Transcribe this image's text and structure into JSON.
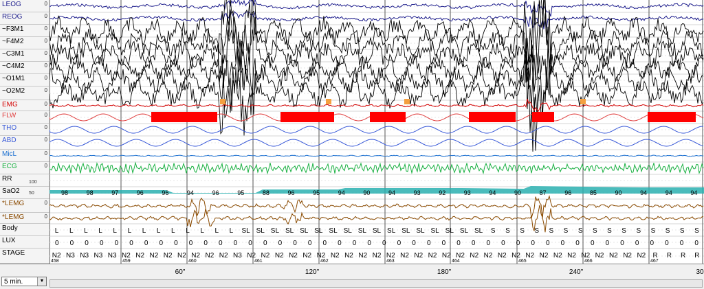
{
  "channels": [
    {
      "name": "LEOG",
      "color": "#1c1c8c",
      "zero": "0"
    },
    {
      "name": "REOG",
      "color": "#1c1c8c",
      "zero": "0"
    },
    {
      "name": "~F3M1",
      "color": "#000000",
      "zero": "0"
    },
    {
      "name": "~F4M2",
      "color": "#000000",
      "zero": "0"
    },
    {
      "name": "~C3M1",
      "color": "#000000",
      "zero": "0"
    },
    {
      "name": "~C4M2",
      "color": "#000000",
      "zero": "0"
    },
    {
      "name": "~O1M1",
      "color": "#000000",
      "zero": "0"
    },
    {
      "name": "~O2M2",
      "color": "#000000",
      "zero": "0"
    },
    {
      "name": "EMG",
      "color": "#d40000",
      "zero": "0"
    },
    {
      "name": "FLW",
      "color": "#e04040",
      "zero": "0"
    },
    {
      "name": "THO",
      "color": "#3a5ad8",
      "zero": "0"
    },
    {
      "name": "ABD",
      "color": "#3a5ad8",
      "zero": "0"
    },
    {
      "name": "MicL",
      "color": "#1a6fd0",
      "zero": "0"
    },
    {
      "name": "ECG",
      "color": "#18b040",
      "zero": "0"
    },
    {
      "name": "RR",
      "color": "#000000",
      "zero": ""
    },
    {
      "name": "SaO2",
      "color": "#000000",
      "zero": ""
    },
    {
      "name": "*LEMG",
      "color": "#8a4a00",
      "zero": "0"
    },
    {
      "name": "*LEMG",
      "color": "#8a4a00",
      "zero": "0"
    },
    {
      "name": "Body",
      "color": "#000000",
      "zero": ""
    },
    {
      "name": "LUX",
      "color": "#000000",
      "zero": ""
    },
    {
      "name": "STAGE",
      "color": "#000000",
      "zero": ""
    }
  ],
  "sao2_axis": {
    "top": "100",
    "bottom": "50"
  },
  "sao2_values": [
    "98",
    "98",
    "97",
    "96",
    "96",
    "94",
    "96",
    "95",
    "88",
    "96",
    "95",
    "94",
    "90",
    "94",
    "93",
    "92",
    "93",
    "94",
    "90",
    "87",
    "96",
    "85",
    "90",
    "94",
    "94",
    "94"
  ],
  "body_positions": [
    "L",
    "L",
    "L",
    "L",
    "L",
    "L",
    "L",
    "L",
    "L",
    "L",
    "L",
    "L",
    "L",
    "SL",
    "SL",
    "SL",
    "SL",
    "SL",
    "SL",
    "SL",
    "SL",
    "SL",
    "SL",
    "SL",
    "SL",
    "SL",
    "SL",
    "SL",
    "SL",
    "SL",
    "S",
    "S",
    "S",
    "S",
    "S",
    "S",
    "S",
    "S",
    "S",
    "S",
    "S",
    "S",
    "S",
    "S",
    "S"
  ],
  "lux_values": [
    "0",
    "0",
    "0",
    "0",
    "0",
    "0",
    "0",
    "0",
    "0",
    "0",
    "0",
    "0",
    "0",
    "0",
    "0",
    "0",
    "0",
    "0",
    "0",
    "0",
    "0",
    "0",
    "0",
    "0",
    "0",
    "0",
    "0",
    "0",
    "0",
    "0",
    "0",
    "0",
    "0",
    "0",
    "0",
    "0",
    "0",
    "0",
    "0",
    "0",
    "0",
    "0",
    "0",
    "0"
  ],
  "stages": [
    "N2",
    "N3",
    "N3",
    "N3",
    "N3",
    "N2",
    "N2",
    "N2",
    "N2",
    "N2",
    "N2",
    "N2",
    "N2",
    "N3",
    "N2",
    "N2",
    "N2",
    "N2",
    "N2",
    "N2",
    "N2",
    "N2",
    "N2",
    "N2",
    "N2",
    "N2",
    "N2",
    "N2",
    "N2",
    "N2",
    "N2",
    "N2",
    "N2",
    "N2",
    "N2",
    "N2",
    "N2",
    "N2",
    "N2",
    "N2",
    "N2",
    "N2",
    "N2",
    "R",
    "R",
    "R",
    "R"
  ],
  "epoch_numbers": [
    "458",
    "459",
    "460",
    "461",
    "462",
    "463",
    "464",
    "465",
    "466",
    "467",
    "468"
  ],
  "time_ticks": [
    "60\"",
    "120\"",
    "180\"",
    "240\"",
    "30"
  ],
  "timescale": "5 min.",
  "colors": {
    "flow_event": "#ff0000",
    "spo2_band": "#2ab0b0",
    "arousal": "#f4a040",
    "lemg": "#8a4a00"
  }
}
